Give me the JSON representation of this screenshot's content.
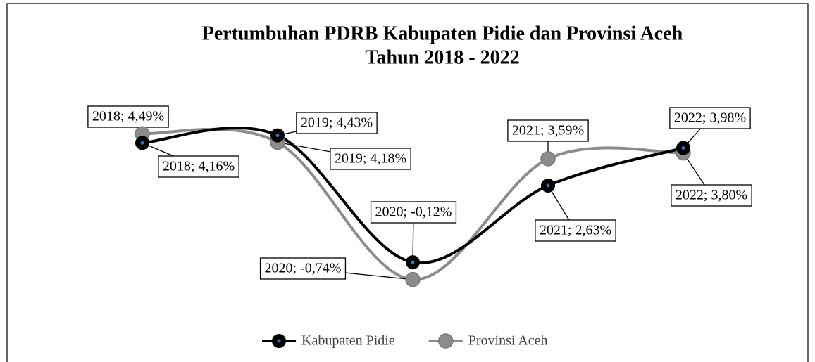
{
  "chart_data": {
    "type": "line",
    "title": "Pertumbuhan PDRB Kabupaten Pidie dan Provinsi Aceh",
    "subtitle": "Tahun 2018 - 2022",
    "categories": [
      "2018",
      "2019",
      "2020",
      "2021",
      "2022"
    ],
    "ylim": [
      -1,
      5
    ],
    "legend": "bottom",
    "series": [
      {
        "name": "Kabupaten Pidie",
        "color": "#000000",
        "values": [
          4.16,
          4.43,
          -0.12,
          2.63,
          3.98
        ],
        "value_labels": [
          "2018; 4,16%",
          "2019; 4,43%",
          "2020; -0,12%",
          "2021; 2,63%",
          "2022; 3,98%"
        ]
      },
      {
        "name": "Provinsi Aceh",
        "color": "#8c8c8c",
        "values": [
          4.49,
          4.18,
          -0.74,
          3.59,
          3.8
        ],
        "value_labels": [
          "2018; 4,49%",
          "2019; 4,18%",
          "2020; -0,74%",
          "2021; 3,59%",
          "2022; 3,80%"
        ]
      }
    ]
  }
}
